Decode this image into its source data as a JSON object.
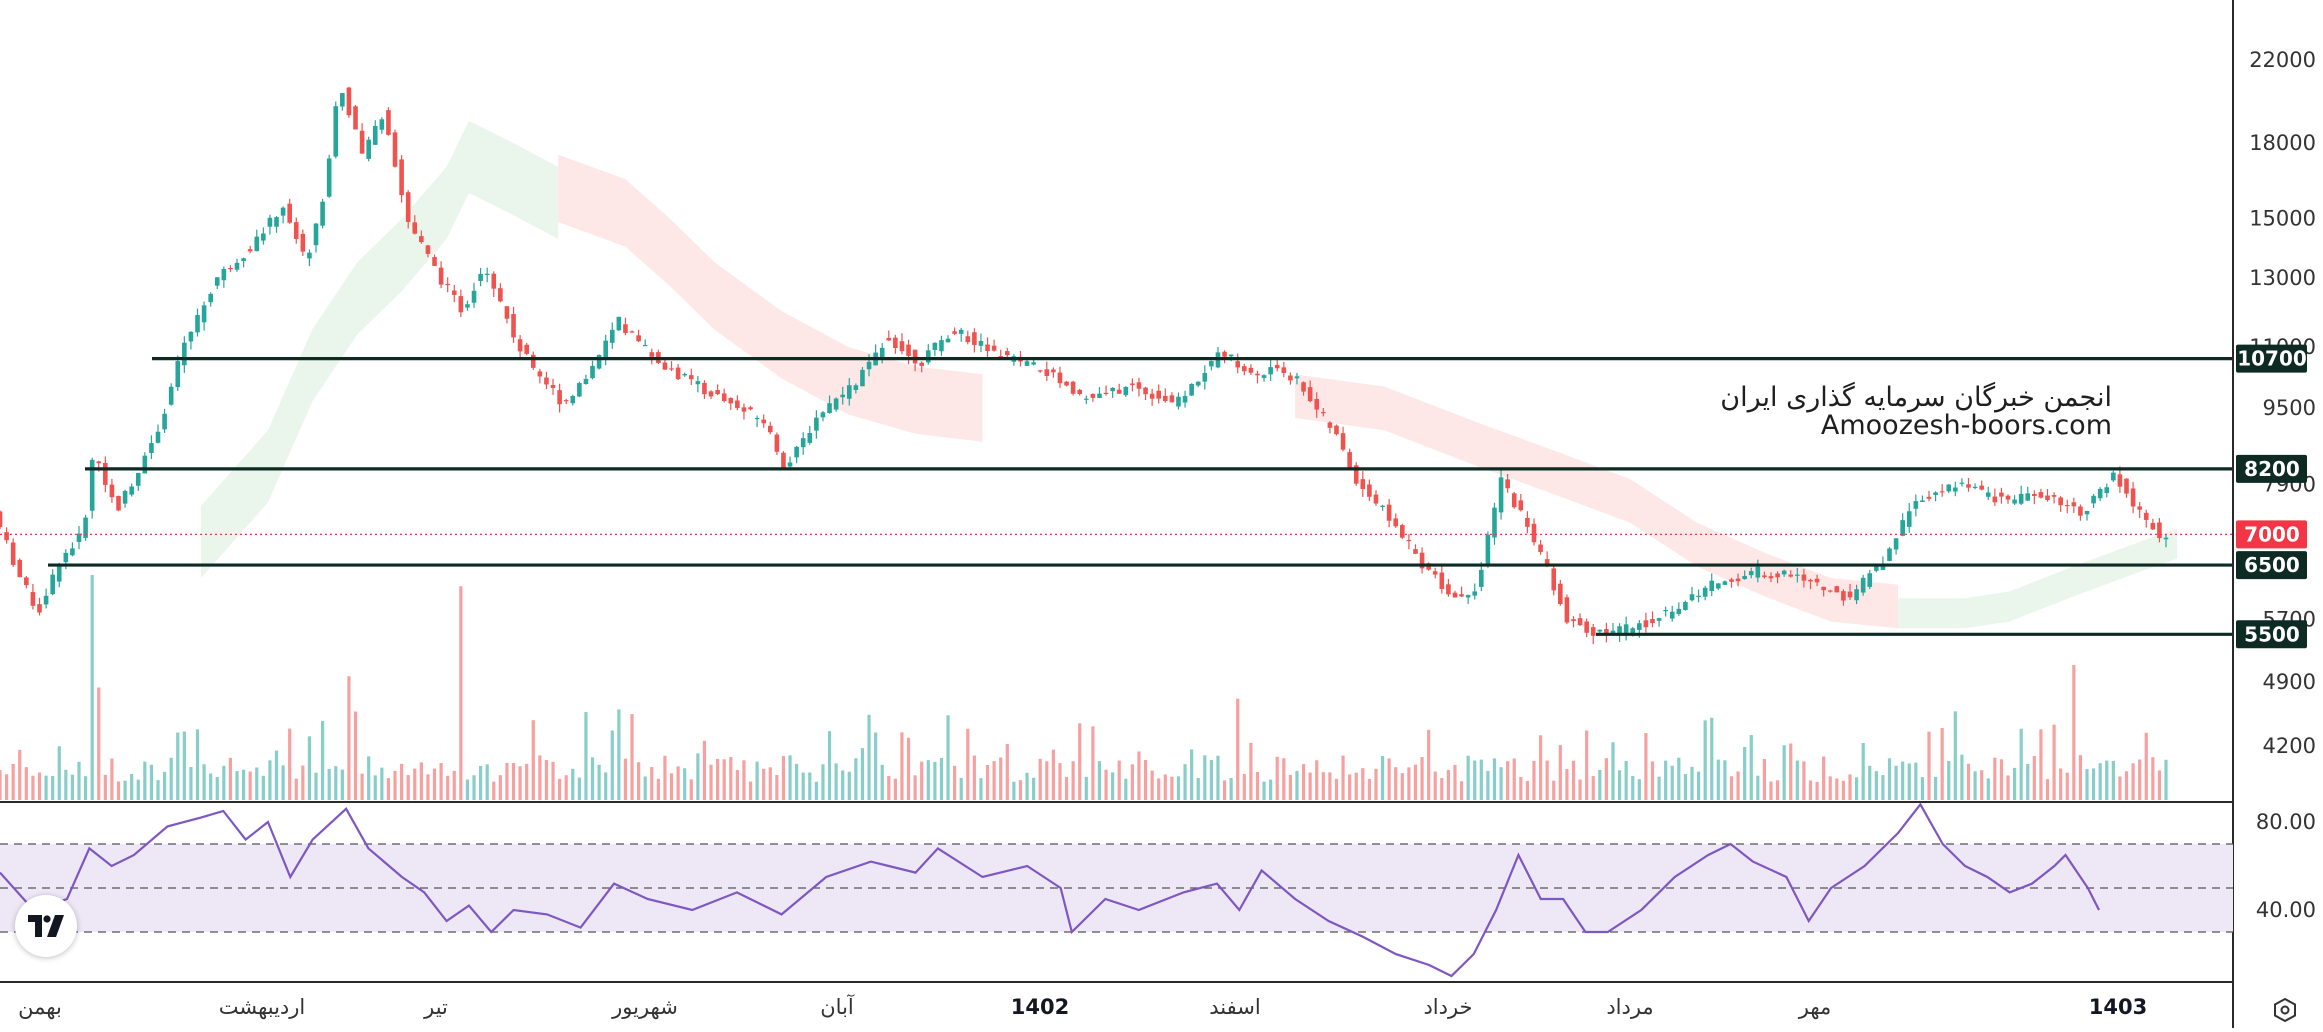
{
  "watermark": {
    "title": "انجمن خبرگان سرمایه گذاری ایران",
    "site": "Amoozesh-boors.com"
  },
  "colors": {
    "bull": "#26a69a",
    "bear": "#ef5350",
    "bull_cloud": "#e8f5e9",
    "bear_cloud": "#fde4e4",
    "level_line": "#0d2a23",
    "current_price": "#f23645",
    "rsi_line": "#7e57c2",
    "rsi_band": "#ede7f6"
  },
  "chart_data": {
    "type": "candlestick",
    "y_scale": "log",
    "price_axis_ticks": [
      "22000",
      "18000",
      "15000",
      "13000",
      "11000",
      "9500",
      "7900",
      "5700",
      "4900",
      "4200"
    ],
    "levels": [
      {
        "label": "10700",
        "value": 10700
      },
      {
        "label": "8200",
        "value": 8200
      },
      {
        "label": "6500",
        "value": 6500
      },
      {
        "label": "5500",
        "value": 5500
      }
    ],
    "current_price": {
      "label": "7000",
      "value": 7000
    },
    "time_axis_labels": [
      "بهمن",
      "اردیبهشت",
      "تیر",
      "شهریور",
      "آبان",
      "1402",
      "اسفند",
      "خرداد",
      "مرداد",
      "مهر",
      "1403"
    ],
    "time_axis_bold": [
      "1402",
      "1403"
    ],
    "price_path": [
      [
        0,
        7400
      ],
      [
        0.012,
        6300
      ],
      [
        0.02,
        5800
      ],
      [
        0.03,
        6600
      ],
      [
        0.04,
        7000
      ],
      [
        0.045,
        8600
      ],
      [
        0.055,
        7400
      ],
      [
        0.065,
        8200
      ],
      [
        0.075,
        9200
      ],
      [
        0.085,
        11000
      ],
      [
        0.1,
        13000
      ],
      [
        0.115,
        14000
      ],
      [
        0.13,
        15500
      ],
      [
        0.14,
        13500
      ],
      [
        0.148,
        16000
      ],
      [
        0.155,
        21000
      ],
      [
        0.165,
        17500
      ],
      [
        0.175,
        19500
      ],
      [
        0.185,
        15000
      ],
      [
        0.2,
        13000
      ],
      [
        0.21,
        12000
      ],
      [
        0.22,
        13500
      ],
      [
        0.235,
        11000
      ],
      [
        0.255,
        9600
      ],
      [
        0.265,
        10200
      ],
      [
        0.28,
        11700
      ],
      [
        0.3,
        10500
      ],
      [
        0.33,
        9600
      ],
      [
        0.345,
        9200
      ],
      [
        0.355,
        8200
      ],
      [
        0.37,
        9400
      ],
      [
        0.385,
        10000
      ],
      [
        0.4,
        11300
      ],
      [
        0.415,
        10600
      ],
      [
        0.43,
        11500
      ],
      [
        0.45,
        10800
      ],
      [
        0.47,
        10400
      ],
      [
        0.49,
        9700
      ],
      [
        0.51,
        10000
      ],
      [
        0.53,
        9600
      ],
      [
        0.55,
        10900
      ],
      [
        0.565,
        10200
      ],
      [
        0.575,
        10500
      ],
      [
        0.585,
        10100
      ],
      [
        0.595,
        9300
      ],
      [
        0.6,
        9000
      ],
      [
        0.61,
        8000
      ],
      [
        0.625,
        7300
      ],
      [
        0.64,
        6500
      ],
      [
        0.655,
        6000
      ],
      [
        0.665,
        6200
      ],
      [
        0.675,
        8000
      ],
      [
        0.685,
        7300
      ],
      [
        0.695,
        6500
      ],
      [
        0.705,
        5700
      ],
      [
        0.72,
        5500
      ],
      [
        0.735,
        5600
      ],
      [
        0.75,
        5800
      ],
      [
        0.77,
        6200
      ],
      [
        0.79,
        6400
      ],
      [
        0.81,
        6300
      ],
      [
        0.83,
        6000
      ],
      [
        0.845,
        6500
      ],
      [
        0.86,
        7600
      ],
      [
        0.88,
        7900
      ],
      [
        0.9,
        7600
      ],
      [
        0.92,
        7700
      ],
      [
        0.935,
        7400
      ],
      [
        0.945,
        7800
      ],
      [
        0.95,
        8100
      ],
      [
        0.96,
        7400
      ],
      [
        0.97,
        7000
      ]
    ],
    "cloud_bull_1": [
      [
        0.09,
        7500
      ],
      [
        0.12,
        9000
      ],
      [
        0.14,
        11500
      ],
      [
        0.16,
        13500
      ],
      [
        0.18,
        15000
      ],
      [
        0.2,
        17000
      ],
      [
        0.21,
        19000
      ],
      [
        0.23,
        18000
      ],
      [
        0.25,
        17000
      ]
    ],
    "cloud_bear_1": [
      [
        0.25,
        17500
      ],
      [
        0.28,
        16500
      ],
      [
        0.3,
        15000
      ],
      [
        0.32,
        13500
      ],
      [
        0.35,
        12000
      ],
      [
        0.38,
        11000
      ],
      [
        0.41,
        10500
      ],
      [
        0.44,
        10300
      ]
    ],
    "cloud_bear_2": [
      [
        0.58,
        10300
      ],
      [
        0.62,
        10000
      ],
      [
        0.66,
        9200
      ],
      [
        0.7,
        8500
      ],
      [
        0.73,
        8000
      ],
      [
        0.76,
        7200
      ],
      [
        0.79,
        6700
      ],
      [
        0.82,
        6300
      ],
      [
        0.85,
        6200
      ]
    ],
    "cloud_bull_2": [
      [
        0.85,
        6000
      ],
      [
        0.88,
        6000
      ],
      [
        0.9,
        6100
      ],
      [
        0.93,
        6500
      ],
      [
        0.96,
        6900
      ],
      [
        0.975,
        7100
      ]
    ],
    "volume_spikes": [
      {
        "x": 0.04,
        "v": 1.0
      },
      {
        "x": 0.045,
        "v": 0.5
      },
      {
        "x": 0.155,
        "v": 0.55
      },
      {
        "x": 0.205,
        "v": 0.95
      },
      {
        "x": 0.555,
        "v": 0.45
      },
      {
        "x": 0.93,
        "v": 0.6
      }
    ],
    "rsi": {
      "levels": [
        70,
        50,
        30
      ],
      "tick_labels": [
        "80.00",
        "40.00"
      ],
      "values": [
        [
          0,
          57
        ],
        [
          0.015,
          40
        ],
        [
          0.03,
          45
        ],
        [
          0.04,
          68
        ],
        [
          0.05,
          60
        ],
        [
          0.06,
          65
        ],
        [
          0.075,
          78
        ],
        [
          0.09,
          82
        ],
        [
          0.1,
          85
        ],
        [
          0.11,
          72
        ],
        [
          0.12,
          80
        ],
        [
          0.13,
          55
        ],
        [
          0.14,
          72
        ],
        [
          0.155,
          86
        ],
        [
          0.165,
          68
        ],
        [
          0.18,
          55
        ],
        [
          0.19,
          48
        ],
        [
          0.2,
          35
        ],
        [
          0.21,
          42
        ],
        [
          0.22,
          30
        ],
        [
          0.23,
          40
        ],
        [
          0.245,
          38
        ],
        [
          0.26,
          32
        ],
        [
          0.275,
          52
        ],
        [
          0.29,
          45
        ],
        [
          0.31,
          40
        ],
        [
          0.33,
          48
        ],
        [
          0.35,
          38
        ],
        [
          0.37,
          55
        ],
        [
          0.39,
          62
        ],
        [
          0.41,
          57
        ],
        [
          0.42,
          68
        ],
        [
          0.44,
          55
        ],
        [
          0.46,
          60
        ],
        [
          0.475,
          50
        ],
        [
          0.48,
          30
        ],
        [
          0.495,
          45
        ],
        [
          0.51,
          40
        ],
        [
          0.53,
          48
        ],
        [
          0.545,
          52
        ],
        [
          0.555,
          40
        ],
        [
          0.565,
          58
        ],
        [
          0.58,
          45
        ],
        [
          0.595,
          35
        ],
        [
          0.61,
          28
        ],
        [
          0.625,
          20
        ],
        [
          0.64,
          15
        ],
        [
          0.65,
          10
        ],
        [
          0.66,
          20
        ],
        [
          0.67,
          40
        ],
        [
          0.68,
          65
        ],
        [
          0.69,
          45
        ],
        [
          0.7,
          45
        ],
        [
          0.71,
          30
        ],
        [
          0.72,
          30
        ],
        [
          0.735,
          40
        ],
        [
          0.75,
          55
        ],
        [
          0.765,
          65
        ],
        [
          0.775,
          70
        ],
        [
          0.785,
          62
        ],
        [
          0.8,
          55
        ],
        [
          0.81,
          35
        ],
        [
          0.82,
          50
        ],
        [
          0.835,
          60
        ],
        [
          0.85,
          75
        ],
        [
          0.86,
          88
        ],
        [
          0.87,
          70
        ],
        [
          0.88,
          60
        ],
        [
          0.89,
          55
        ],
        [
          0.9,
          48
        ],
        [
          0.91,
          52
        ],
        [
          0.92,
          60
        ],
        [
          0.925,
          65
        ],
        [
          0.935,
          50
        ],
        [
          0.94,
          40
        ]
      ]
    }
  }
}
